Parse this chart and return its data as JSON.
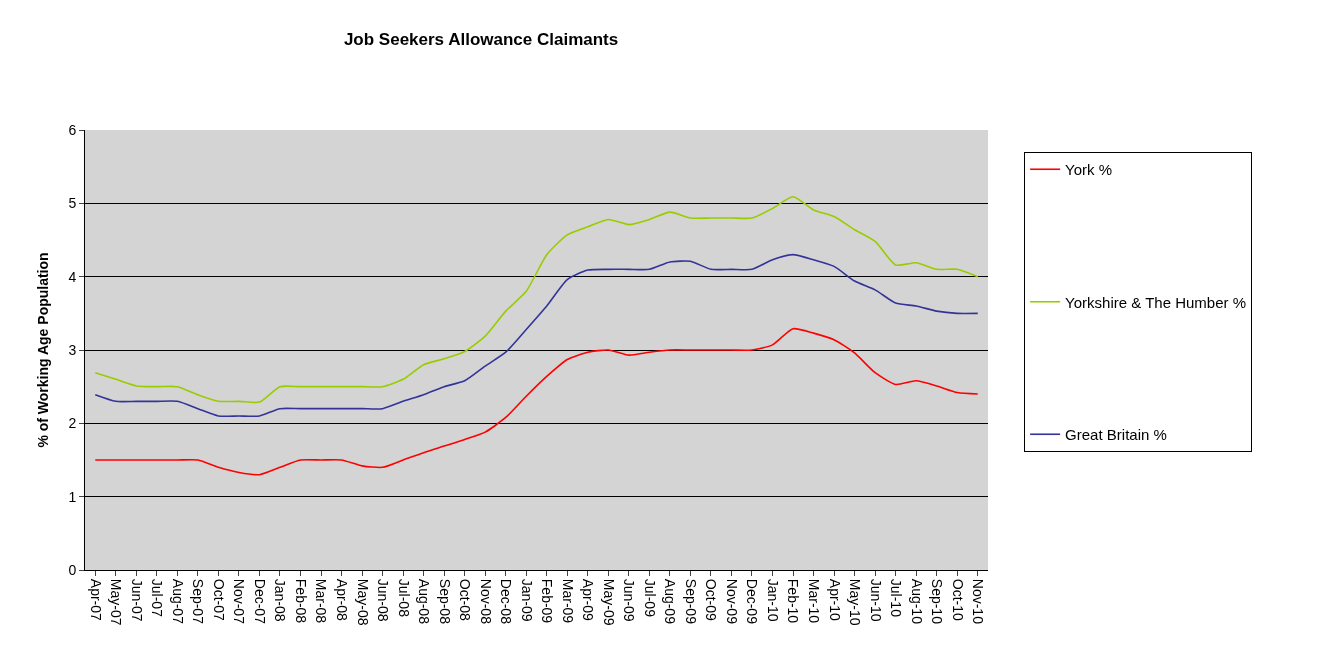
{
  "chart_data": {
    "type": "line",
    "title": "Job Seekers Allowance Claimants",
    "ylabel": "% of Working Age Population",
    "categories": [
      "Apr-07",
      "May-07",
      "Jun-07",
      "Jul-07",
      "Aug-07",
      "Sep-07",
      "Oct-07",
      "Nov-07",
      "Dec-07",
      "Jan-08",
      "Feb-08",
      "Mar-08",
      "Apr-08",
      "May-08",
      "Jun-08",
      "Jul-08",
      "Aug-08",
      "Sep-08",
      "Oct-08",
      "Nov-08",
      "Dec-08",
      "Jan-09",
      "Feb-09",
      "Mar-09",
      "Apr-09",
      "May-09",
      "Jun-09",
      "Jul-09",
      "Aug-09",
      "Sep-09",
      "Oct-09",
      "Nov-09",
      "Dec-09",
      "Jan-10",
      "Feb-10",
      "Mar-10",
      "Apr-10",
      "May-10",
      "Jun-10",
      "Jul-10",
      "Aug-10",
      "Sep-10",
      "Oct-10",
      "Nov-10"
    ],
    "series": [
      {
        "name": "York %",
        "color": "#ff0000",
        "values": [
          1.5,
          1.5,
          1.5,
          1.5,
          1.5,
          1.5,
          1.4,
          1.33,
          1.3,
          1.4,
          1.5,
          1.5,
          1.5,
          1.42,
          1.4,
          1.5,
          1.6,
          1.69,
          1.78,
          1.88,
          2.08,
          2.37,
          2.64,
          2.87,
          2.97,
          3.0,
          2.93,
          2.97,
          3.0,
          3.0,
          3.0,
          3.0,
          3.0,
          3.07,
          3.29,
          3.23,
          3.14,
          2.96,
          2.69,
          2.53,
          2.58,
          2.51,
          2.42,
          2.4
        ]
      },
      {
        "name": "Yorkshire & The Humber %",
        "color": "#99cc00",
        "values": [
          2.69,
          2.6,
          2.51,
          2.5,
          2.5,
          2.39,
          2.3,
          2.3,
          2.29,
          2.5,
          2.5,
          2.5,
          2.5,
          2.5,
          2.5,
          2.6,
          2.8,
          2.88,
          2.98,
          3.19,
          3.53,
          3.8,
          4.3,
          4.57,
          4.68,
          4.78,
          4.71,
          4.78,
          4.88,
          4.8,
          4.8,
          4.8,
          4.8,
          4.93,
          5.09,
          4.91,
          4.82,
          4.64,
          4.48,
          4.16,
          4.19,
          4.1,
          4.1,
          4.0
        ]
      },
      {
        "name": "Great Britain %",
        "color": "#333399",
        "values": [
          2.39,
          2.3,
          2.3,
          2.3,
          2.3,
          2.2,
          2.1,
          2.1,
          2.1,
          2.2,
          2.2,
          2.2,
          2.2,
          2.2,
          2.2,
          2.3,
          2.39,
          2.5,
          2.58,
          2.78,
          2.97,
          3.28,
          3.6,
          3.96,
          4.09,
          4.1,
          4.1,
          4.1,
          4.2,
          4.21,
          4.1,
          4.1,
          4.1,
          4.23,
          4.3,
          4.23,
          4.14,
          3.94,
          3.82,
          3.64,
          3.6,
          3.53,
          3.5,
          3.5
        ]
      }
    ],
    "ylim": [
      0,
      6
    ],
    "yticks": [
      0,
      1,
      2,
      3,
      4,
      5,
      6
    ],
    "grid": "y",
    "legend": "right",
    "marker": "none",
    "line_style": "solid"
  }
}
